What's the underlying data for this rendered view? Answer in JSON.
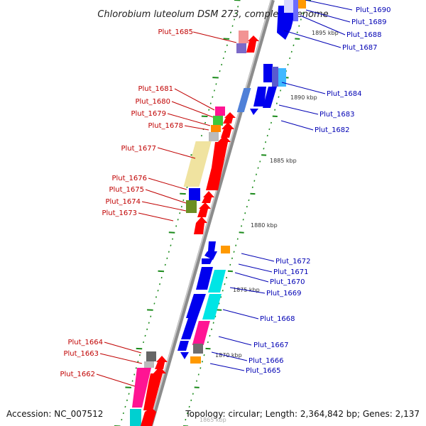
{
  "title": "Chlorobium luteolum DSM 273, complete genome",
  "accession": "Accession: NC_007512",
  "summary": "Topology: circular; Length: 2,364,842 bp; Genes: 2,137",
  "scale_labels": [
    "1895 kbp",
    "1890 kbp",
    "1885 kbp",
    "1880 kbp",
    "1875 kbp",
    "1870 kbp",
    "1865 kbp"
  ],
  "genes_left": [
    "Plut_1685",
    "Plut_1681",
    "Plut_1680",
    "Plut_1679",
    "Plut_1678",
    "Plut_1677",
    "Plut_1676",
    "Plut_1675",
    "Plut_1674",
    "Plut_1673",
    "Plut_1664",
    "Plut_1663",
    "Plut_1662"
  ],
  "genes_right": [
    "Plut_1690",
    "Plut_1689",
    "Plut_1688",
    "Plut_1687",
    "Plut_1684",
    "Plut_1683",
    "Plut_1682",
    "Plut_1672",
    "Plut_1671",
    "Plut_1670",
    "Plut_1669",
    "Plut_1668",
    "Plut_1667",
    "Plut_1666",
    "Plut_1665"
  ],
  "colors": {
    "forward_strand_arrow": "#ff0000",
    "reverse_strand_arrow": "#0000ee",
    "left_label": "#c00000",
    "right_label": "#0000b4",
    "backbone": "#8c8c8c",
    "tick": "#1a8a1a"
  }
}
